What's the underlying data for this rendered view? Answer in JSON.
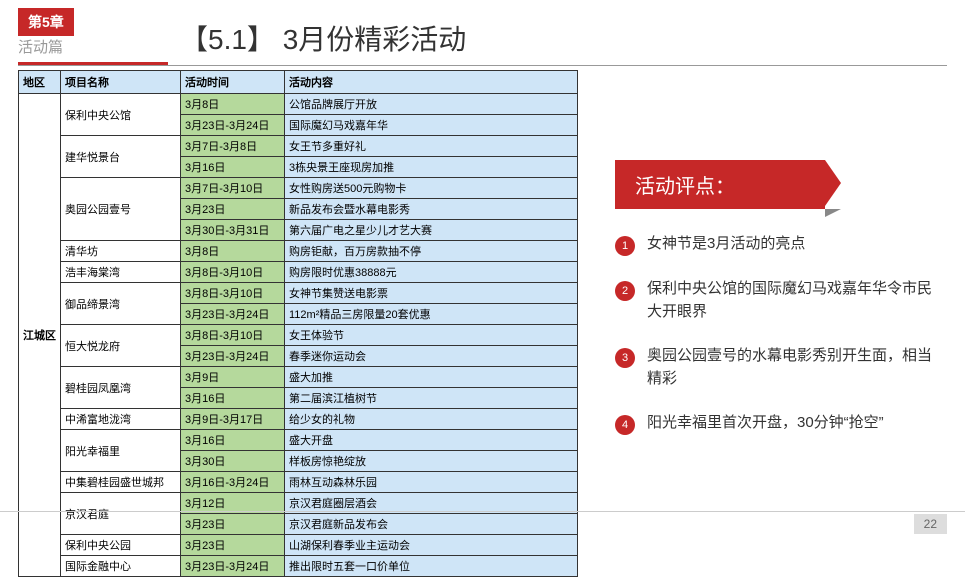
{
  "chapter_tag": "第5章",
  "subtitle": "活动篇",
  "title": "【5.1】 3月份精彩活动",
  "page_num": "22",
  "columns": [
    "地区",
    "项目名称",
    "活动时间",
    "活动内容"
  ],
  "region": "江城区",
  "projects": [
    {
      "name": "保利中央公馆",
      "rows": [
        {
          "time": "3月8日",
          "content": "公馆品牌展厅开放"
        },
        {
          "time": "3月23日-3月24日",
          "content": "国际魔幻马戏嘉年华"
        }
      ]
    },
    {
      "name": "建华悦景台",
      "rows": [
        {
          "time": "3月7日-3月8日",
          "content": "女王节多重好礼"
        },
        {
          "time": "3月16日",
          "content": "3栋央景王座现房加推"
        }
      ]
    },
    {
      "name": "奥园公园壹号",
      "rows": [
        {
          "time": "3月7日-3月10日",
          "content": "女性购房送500元购物卡"
        },
        {
          "time": "3月23日",
          "content": "新品发布会暨水幕电影秀"
        },
        {
          "time": "3月30日-3月31日",
          "content": "第六届广电之星少儿才艺大赛"
        }
      ]
    },
    {
      "name": "清华坊",
      "rows": [
        {
          "time": "3月8日",
          "content": "购房钜献，百万房款抽不停"
        }
      ]
    },
    {
      "name": "浩丰海棠湾",
      "rows": [
        {
          "time": "3月8日-3月10日",
          "content": "购房限时优惠38888元"
        }
      ]
    },
    {
      "name": "御品缔景湾",
      "rows": [
        {
          "time": "3月8日-3月10日",
          "content": "女神节集赞送电影票"
        },
        {
          "time": "3月23日-3月24日",
          "content": "112m²精品三房限量20套优惠"
        }
      ]
    },
    {
      "name": "恒大悦龙府",
      "rows": [
        {
          "time": "3月8日-3月10日",
          "content": "女王体验节"
        },
        {
          "time": "3月23日-3月24日",
          "content": "春季迷你运动会"
        }
      ]
    },
    {
      "name": "碧桂园凤凰湾",
      "rows": [
        {
          "time": "3月9日",
          "content": "盛大加推"
        },
        {
          "time": "3月16日",
          "content": "第二届滨江植树节"
        }
      ]
    },
    {
      "name": "中浠富地泷湾",
      "rows": [
        {
          "time": "3月9日-3月17日",
          "content": "给少女的礼物"
        }
      ]
    },
    {
      "name": "阳光幸福里",
      "rows": [
        {
          "time": "3月16日",
          "content": "盛大开盘"
        },
        {
          "time": "3月30日",
          "content": "样板房惊艳绽放"
        }
      ]
    },
    {
      "name": "中集碧桂园盛世城邦",
      "rows": [
        {
          "time": "3月16日-3月24日",
          "content": "雨林互动森林乐园"
        }
      ]
    },
    {
      "name": "京汉君庭",
      "rows": [
        {
          "time": "3月12日",
          "content": "京汉君庭圈层酒会"
        },
        {
          "time": "3月23日",
          "content": "京汉君庭新品发布会"
        }
      ]
    },
    {
      "name": "保利中央公园",
      "rows": [
        {
          "time": "3月23日",
          "content": "山湖保利春季业主运动会"
        }
      ]
    },
    {
      "name": "国际金融中心",
      "rows": [
        {
          "time": "3月23日-3月24日",
          "content": "推出限时五套一口价单位"
        }
      ]
    }
  ],
  "commentary": {
    "header": "活动评点：",
    "items": [
      "女神节是3月活动的亮点",
      "保利中央公馆的国际魔幻马戏嘉年华令市民大开眼界",
      "奥园公园壹号的水幕电影秀别开生面，相当精彩",
      "阳光幸福里首次开盘，30分钟“抢空”"
    ]
  }
}
